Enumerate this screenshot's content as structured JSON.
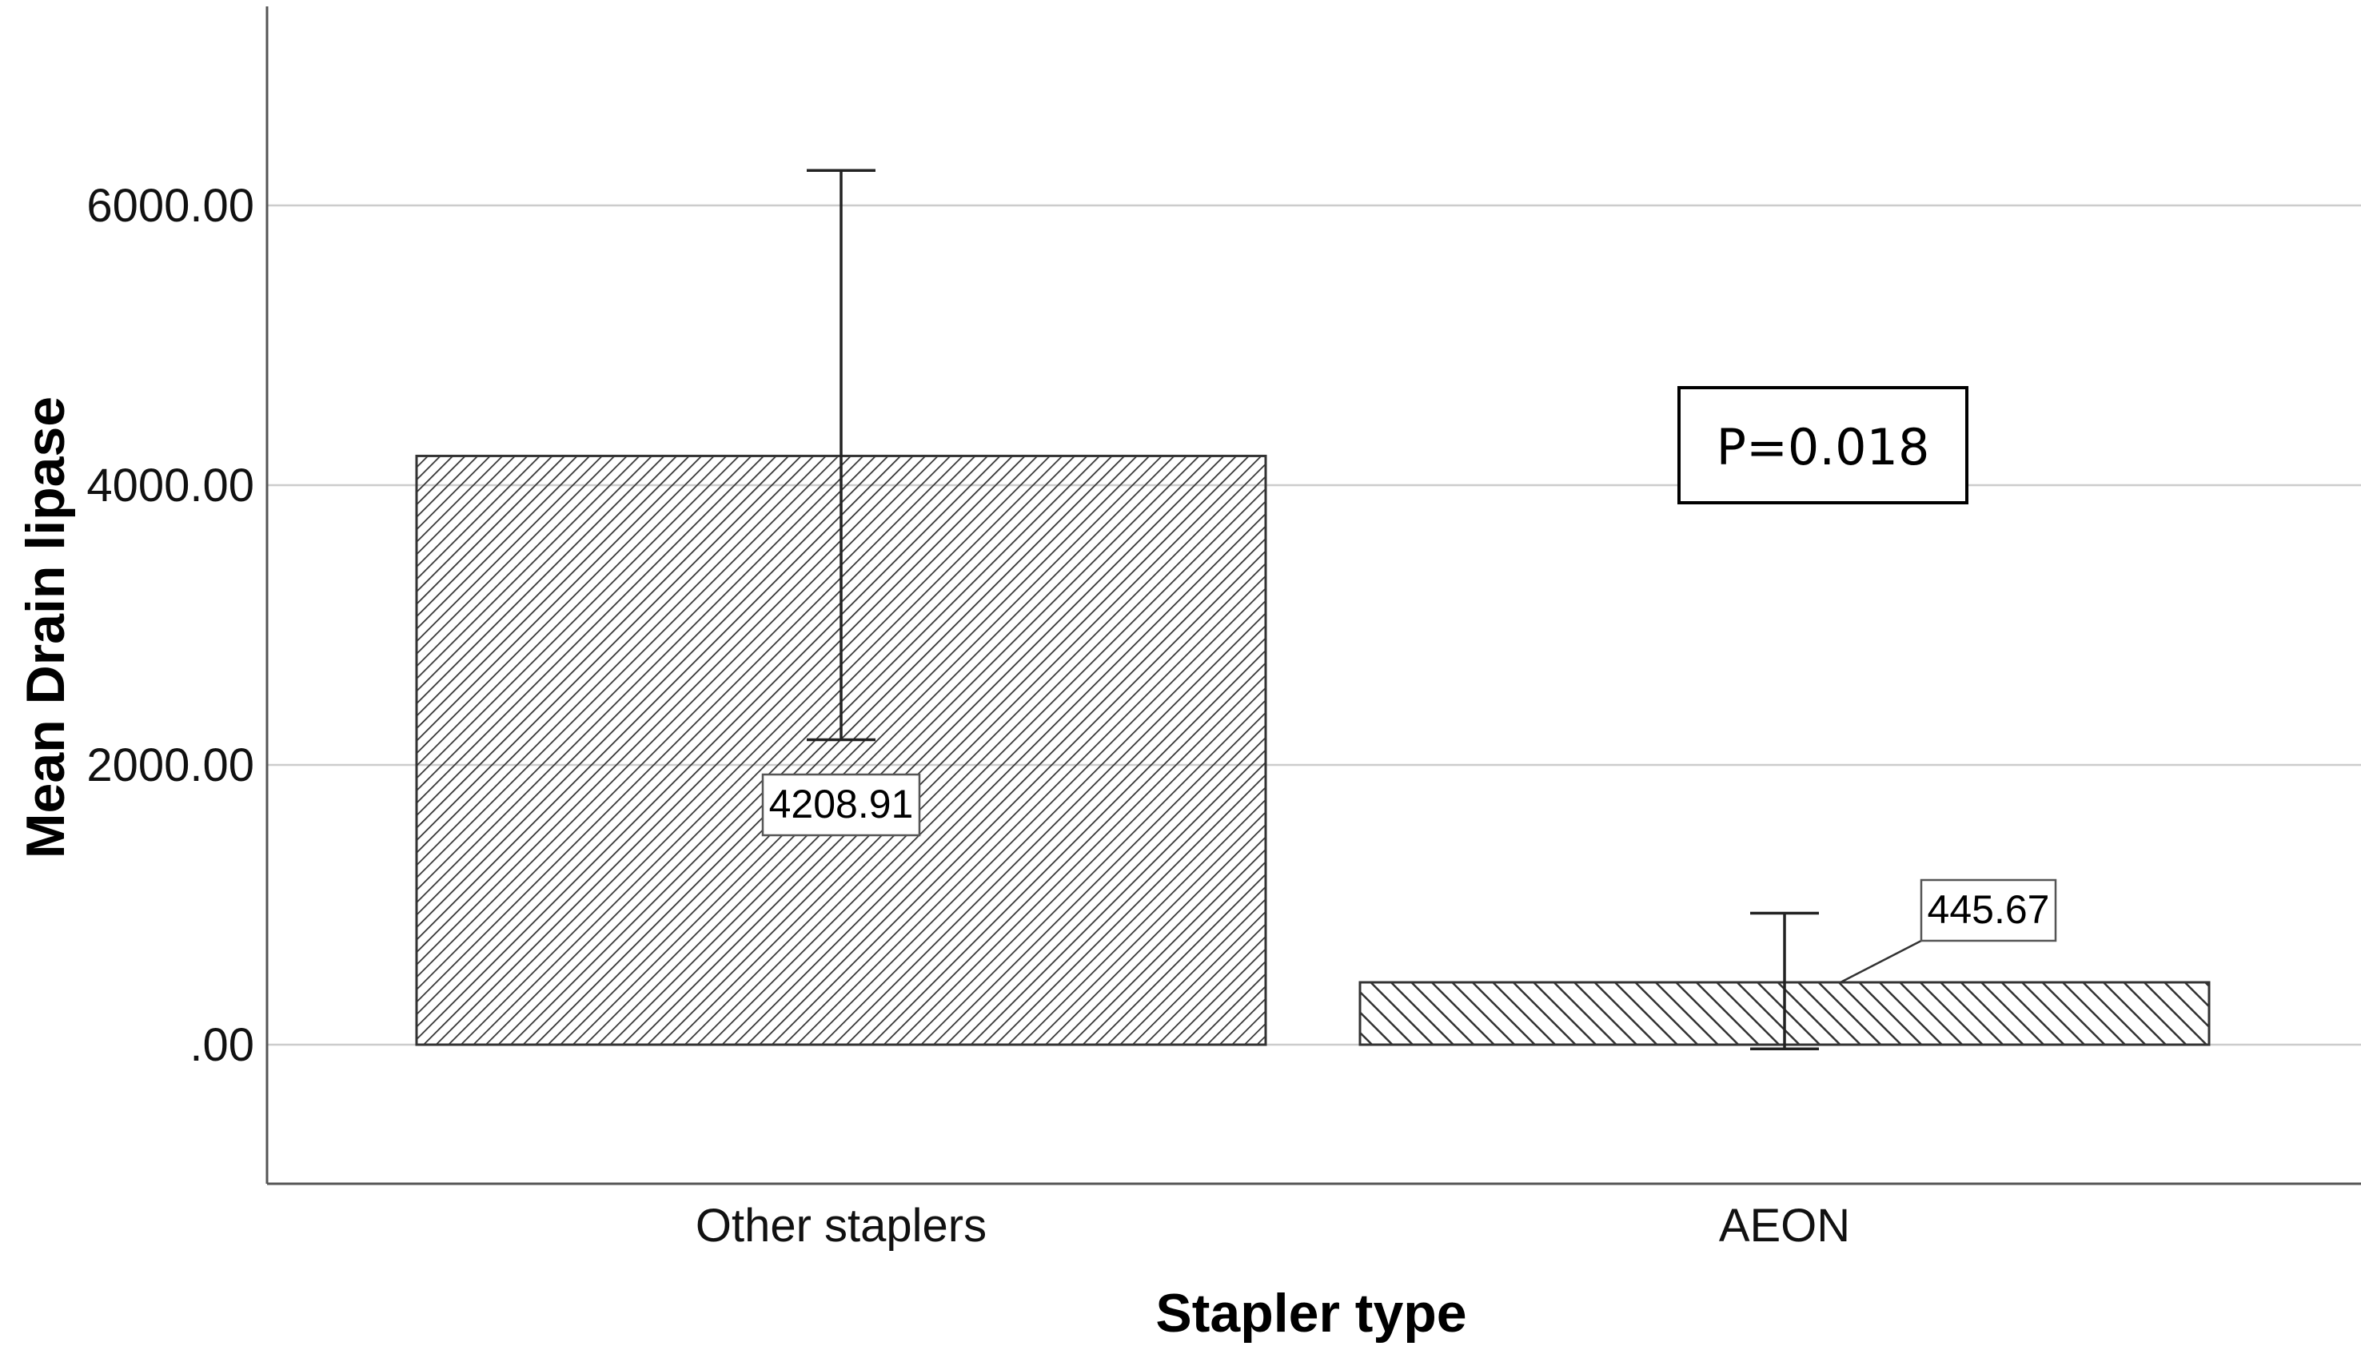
{
  "chart_data": {
    "type": "bar",
    "categories": [
      "Other staplers",
      "AEON"
    ],
    "values": [
      4208.91,
      445.67
    ],
    "value_labels": [
      "4208.91",
      "445.67"
    ],
    "error_bars": [
      {
        "low": 2180,
        "high": 6250
      },
      {
        "low": -30,
        "high": 940
      }
    ],
    "xlabel": "Stapler type",
    "ylabel": "Mean Drain lipase",
    "ylim": [
      -1000,
      7400
    ],
    "y_ticks": [
      0,
      2000,
      4000,
      6000
    ],
    "y_tick_labels": [
      ".00",
      "2000.00",
      "4000.00",
      "6000.00"
    ],
    "grid": true,
    "annotation": "P=0.018",
    "colors": {
      "bar_stroke": "#333333",
      "hatch": "#333333",
      "grid": "#cccccc",
      "axis": "#555555"
    }
  }
}
